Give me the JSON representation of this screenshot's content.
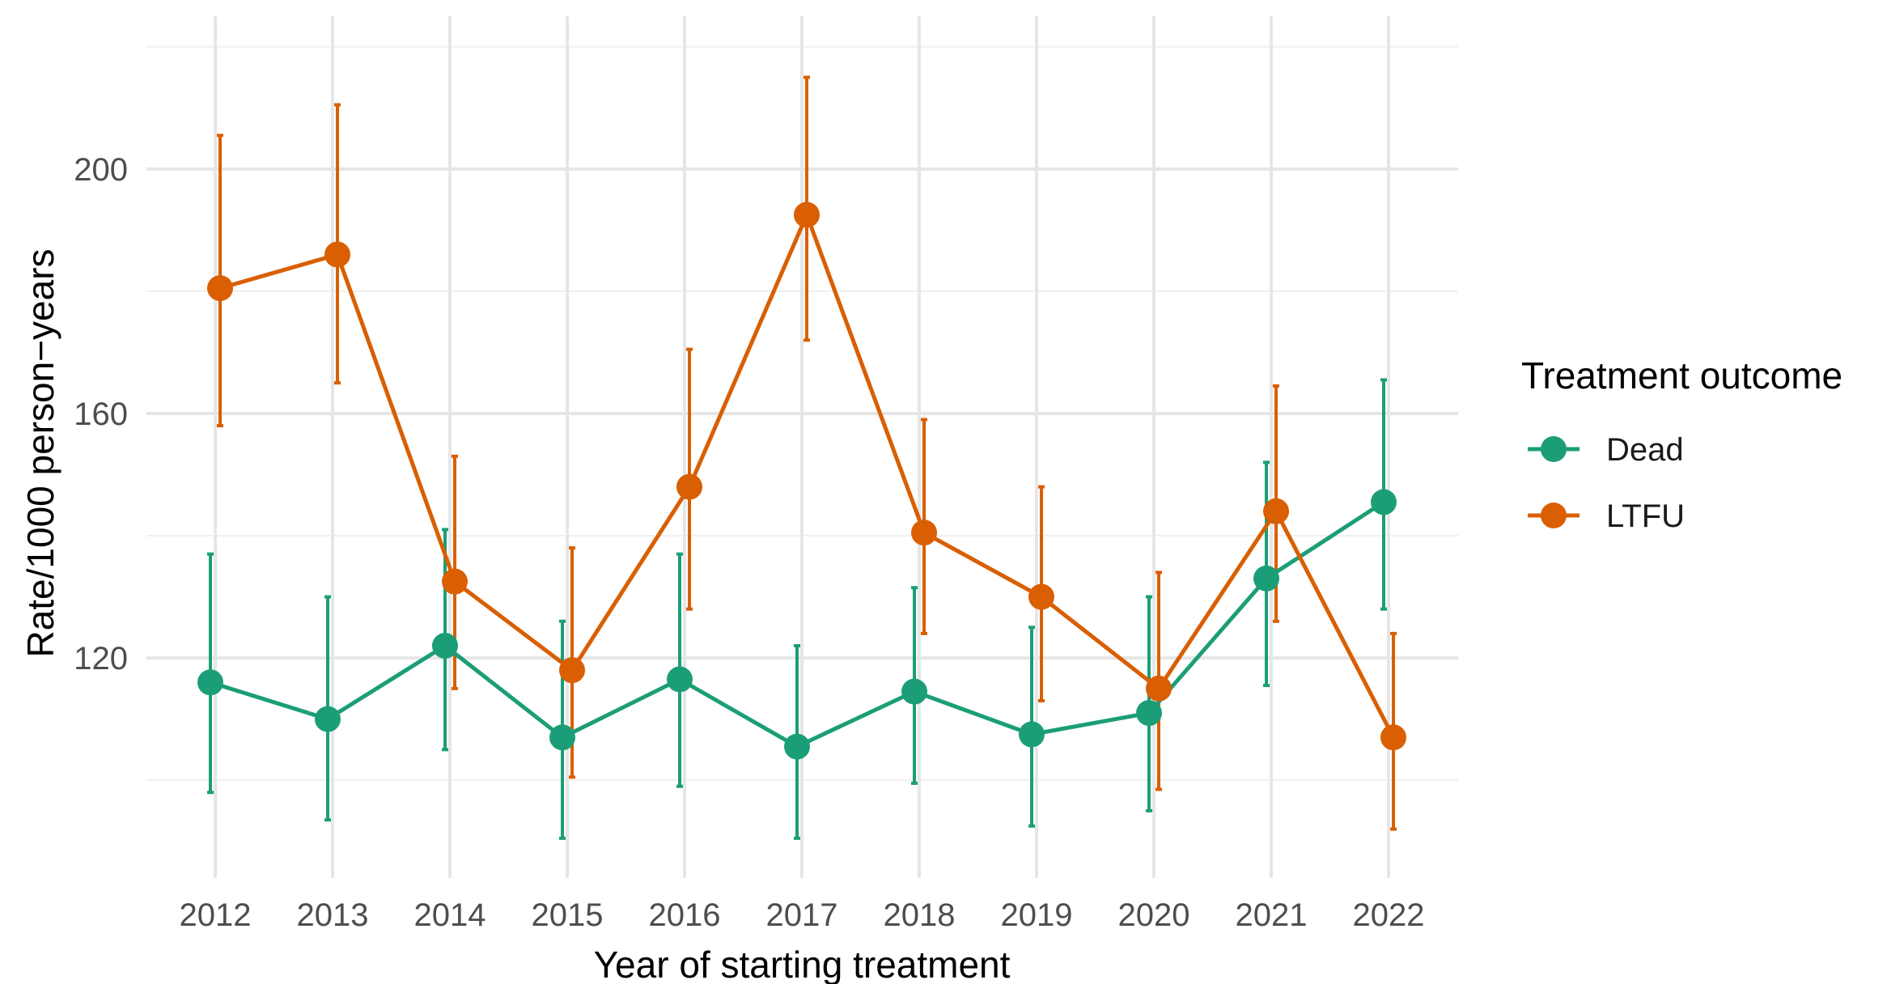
{
  "chart_data": {
    "type": "line",
    "title": "",
    "xlabel": "Year of starting treatment",
    "ylabel": "Rate/1000 person−years",
    "categories": [
      "2012",
      "2013",
      "2014",
      "2015",
      "2016",
      "2017",
      "2018",
      "2019",
      "2020",
      "2021",
      "2022"
    ],
    "ylim": [
      84,
      225
    ],
    "yticks": [
      120,
      160,
      200
    ],
    "grid": true,
    "legend": {
      "title": "Treatment outcome",
      "placement": "right"
    },
    "series": [
      {
        "name": "Dead",
        "color": "#1b9e77",
        "values": [
          116,
          110,
          122,
          107,
          116.5,
          105.5,
          114.5,
          107.5,
          111,
          133,
          145.5
        ],
        "lower": [
          98,
          93.5,
          105,
          90.5,
          99,
          90.5,
          99.5,
          92.5,
          95,
          115.5,
          128
        ],
        "upper": [
          137,
          130,
          141,
          126,
          137,
          122,
          131.5,
          125,
          130,
          152,
          165.5
        ]
      },
      {
        "name": "LTFU",
        "color": "#d95f02",
        "values": [
          180.5,
          186,
          132.5,
          118,
          148,
          192.5,
          140.5,
          130,
          115,
          144,
          107
        ],
        "lower": [
          158,
          165,
          115,
          100.5,
          128,
          172,
          124,
          113,
          98.5,
          126,
          92
        ],
        "upper": [
          205.5,
          210.5,
          153,
          138,
          170.5,
          215,
          159,
          148,
          134,
          164.5,
          124
        ]
      }
    ]
  }
}
